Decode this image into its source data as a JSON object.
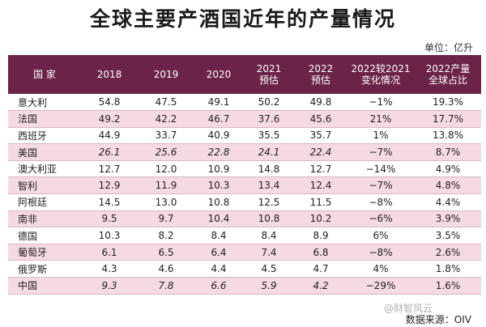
{
  "title": "全球主要产酒国近年的产量情况",
  "unit": "单位：亿升",
  "headers": [
    [
      "国 家"
    ],
    [
      "2018"
    ],
    [
      "2019"
    ],
    [
      "2020"
    ],
    [
      "2021",
      "预估"
    ],
    [
      "2022",
      "预估"
    ],
    [
      "2022较2021",
      "变化情况"
    ],
    [
      "2022产量",
      "全球占比"
    ]
  ],
  "rows": [
    {
      "country": "意大利",
      "italic": false,
      "values": [
        "54.8",
        "47.5",
        "49.1",
        "50.2",
        "49.8",
        "−1%",
        "19.3%"
      ]
    },
    {
      "country": "法国",
      "italic": false,
      "values": [
        "49.2",
        "42.2",
        "46.7",
        "37.6",
        "45.6",
        "21%",
        "17.7%"
      ]
    },
    {
      "country": "西班牙",
      "italic": false,
      "values": [
        "44.9",
        "33.7",
        "40.9",
        "35.5",
        "35.7",
        "1%",
        "13.8%"
      ]
    },
    {
      "country": "美国",
      "italic": true,
      "values": [
        "26.1",
        "25.6",
        "22.8",
        "24.1",
        "22.4",
        "−7%",
        "8.7%"
      ]
    },
    {
      "country": "澳大利亚",
      "italic": false,
      "values": [
        "12.7",
        "12.0",
        "10.9",
        "14.8",
        "12.7",
        "−14%",
        "4.9%"
      ]
    },
    {
      "country": "智利",
      "italic": false,
      "values": [
        "12.9",
        "11.9",
        "10.3",
        "13.4",
        "12.4",
        "−7%",
        "4.8%"
      ]
    },
    {
      "country": "阿根廷",
      "italic": false,
      "values": [
        "14.5",
        "13.0",
        "10.8",
        "12.5",
        "11.5",
        "−8%",
        "4.4%"
      ]
    },
    {
      "country": "南非",
      "italic": false,
      "values": [
        "9.5",
        "9.7",
        "10.4",
        "10.8",
        "10.2",
        "−6%",
        "3.9%"
      ]
    },
    {
      "country": "德国",
      "italic": false,
      "values": [
        "10.3",
        "8.2",
        "8.4",
        "8.4",
        "8.9",
        "6%",
        "3.5%"
      ]
    },
    {
      "country": "葡萄牙",
      "italic": false,
      "values": [
        "6.1",
        "6.5",
        "6.4",
        "7.4",
        "6.8",
        "−8%",
        "2.6%"
      ]
    },
    {
      "country": "俄罗斯",
      "italic": false,
      "values": [
        "4.3",
        "4.6",
        "4.4",
        "4.5",
        "4.7",
        "4%",
        "1.8%"
      ]
    },
    {
      "country": "中国",
      "italic": true,
      "values": [
        "9.3",
        "7.8",
        "6.6",
        "5.9",
        "4.2",
        "−29%",
        "1.6%"
      ]
    }
  ],
  "source": "数据来源：OIV",
  "watermark": "@财智风云",
  "colors": {
    "header_bg": "#6b2347",
    "stripe": "#f5d9e5"
  }
}
